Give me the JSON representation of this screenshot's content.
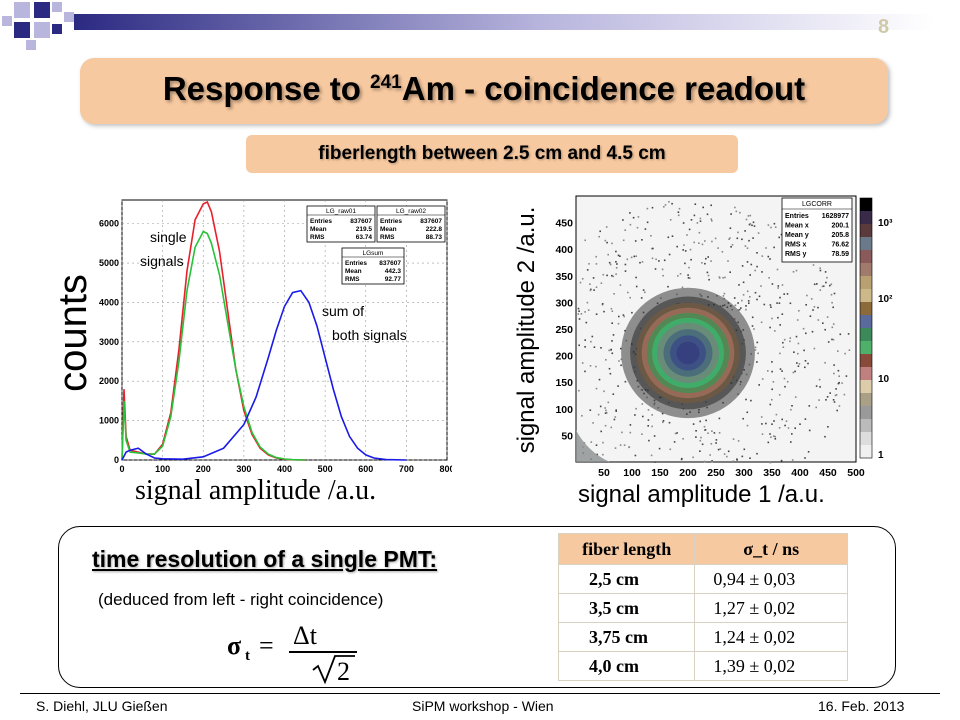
{
  "page_number": "8",
  "title": {
    "pre": "Response to ",
    "sup": "241",
    "post": "Am - coincidence readout"
  },
  "subtitle": "fiberlength between 2.5 cm and 4.5 cm",
  "colors": {
    "accent_box": "#f7c9a0",
    "deco_dark": "#2b2a82",
    "deco_light": "#b9b6de",
    "red": "#e8202a",
    "green": "#28c23a",
    "blue": "#1a1ae8"
  },
  "left_plot": {
    "y_title": "counts",
    "x_title": "signal amplitude /a.u.",
    "annotation_single": [
      "single",
      "signals"
    ],
    "annotation_sum": [
      "sum of",
      "both signals"
    ],
    "stats_boxes": [
      {
        "name": "LG_raw01",
        "rows": [
          [
            "Entries",
            "837607"
          ],
          [
            "Mean",
            "219.5"
          ],
          [
            "RMS",
            "63.74"
          ]
        ]
      },
      {
        "name": "LG_raw02",
        "rows": [
          [
            "Entries",
            "837607"
          ],
          [
            "Mean",
            "222.8"
          ],
          [
            "RMS",
            "88.73"
          ]
        ]
      },
      {
        "name": "LGsum",
        "rows": [
          [
            "Entries",
            "837607"
          ],
          [
            "Mean",
            "442.3"
          ],
          [
            "RMS",
            "92.77"
          ]
        ]
      }
    ]
  },
  "right_plot": {
    "x_title": "signal amplitude 1 /a.u.",
    "y_title": "signal amplitude 2 /a.u.",
    "stats_box": {
      "name": "LGCORR",
      "rows": [
        [
          "Entries",
          "1628977"
        ],
        [
          "Mean x",
          "200.1"
        ],
        [
          "Mean y",
          "205.8"
        ],
        [
          "RMS x",
          "76.62"
        ],
        [
          "RMS y",
          "78.59"
        ]
      ]
    },
    "colorbar_labels": [
      "10³",
      "10²",
      "10",
      "1"
    ]
  },
  "chart_data": [
    {
      "type": "line",
      "title": "",
      "xlabel": "signal amplitude /a.u.",
      "ylabel": "counts",
      "xlim": [
        0,
        800
      ],
      "ylim": [
        0,
        6600
      ],
      "xticks": [
        0,
        100,
        200,
        300,
        400,
        500,
        600,
        700,
        800
      ],
      "yticks": [
        0,
        1000,
        2000,
        3000,
        4000,
        5000,
        6000
      ],
      "grid": true,
      "series": [
        {
          "name": "LG_raw01",
          "color": "#e8202a",
          "x": [
            0,
            5,
            10,
            20,
            40,
            60,
            80,
            100,
            120,
            140,
            160,
            180,
            200,
            210,
            220,
            240,
            260,
            280,
            300,
            320,
            340,
            360,
            380,
            400,
            420,
            450
          ],
          "y": [
            0,
            1800,
            600,
            250,
            200,
            150,
            150,
            400,
            1200,
            2800,
            4800,
            6100,
            6500,
            6550,
            6300,
            5300,
            3800,
            2300,
            1250,
            650,
            300,
            130,
            50,
            20,
            5,
            0
          ]
        },
        {
          "name": "LG_raw02",
          "color": "#28c23a",
          "x": [
            0,
            5,
            10,
            20,
            40,
            60,
            80,
            100,
            120,
            140,
            160,
            180,
            200,
            210,
            220,
            240,
            260,
            280,
            300,
            320,
            340,
            360,
            380,
            400,
            420,
            450
          ],
          "y": [
            0,
            1500,
            500,
            200,
            180,
            150,
            150,
            350,
            1100,
            2500,
            4300,
            5400,
            5800,
            5750,
            5500,
            4700,
            3500,
            2300,
            1350,
            700,
            330,
            150,
            60,
            25,
            8,
            0
          ]
        },
        {
          "name": "LGsum",
          "color": "#1a1ae8",
          "x": [
            0,
            10,
            20,
            40,
            60,
            80,
            100,
            150,
            200,
            250,
            300,
            330,
            360,
            380,
            400,
            420,
            440,
            460,
            480,
            500,
            520,
            540,
            560,
            580,
            600,
            620,
            650,
            700
          ],
          "y": [
            0,
            200,
            250,
            300,
            150,
            50,
            30,
            20,
            80,
            300,
            900,
            1600,
            2600,
            3300,
            3900,
            4250,
            4300,
            4000,
            3400,
            2600,
            1800,
            1100,
            600,
            300,
            130,
            50,
            10,
            0
          ]
        }
      ]
    },
    {
      "type": "heatmap",
      "title": "",
      "xlabel": "signal amplitude 1 /a.u.",
      "ylabel": "signal amplitude 2 /a.u.",
      "xlim": [
        0,
        500
      ],
      "ylim": [
        0,
        500
      ],
      "xticks": [
        50,
        100,
        150,
        200,
        250,
        300,
        350,
        400,
        450,
        500
      ],
      "yticks": [
        50,
        100,
        150,
        200,
        250,
        300,
        350,
        400,
        450
      ],
      "zscale": "log",
      "zticks": [
        "1",
        "10",
        "10²",
        "10³"
      ],
      "peak_center": [
        200,
        205
      ],
      "rms": [
        76.62,
        78.59
      ]
    }
  ],
  "table": {
    "headers": [
      "fiber length",
      "σ_t / ns"
    ],
    "rows": [
      [
        "2,5    cm",
        "0,94 ± 0,03"
      ],
      [
        "3,5    cm",
        "1,27 ± 0,02"
      ],
      [
        "3,75 cm",
        "1,24 ± 0,02"
      ],
      [
        "4,0    cm",
        "1,39 ± 0,02"
      ]
    ]
  },
  "time_resolution": {
    "title": "time resolution of a single PMT:",
    "subtitle": "(deduced from left - right coincidence)",
    "formula": {
      "lhs": "σ",
      "lhs_sub": "t",
      "num": "Δt",
      "den": "2"
    }
  },
  "footer": {
    "left": "S. Diehl, JLU Gießen",
    "center": "SiPM workshop - Wien",
    "right": "16.  Feb. 2013"
  }
}
